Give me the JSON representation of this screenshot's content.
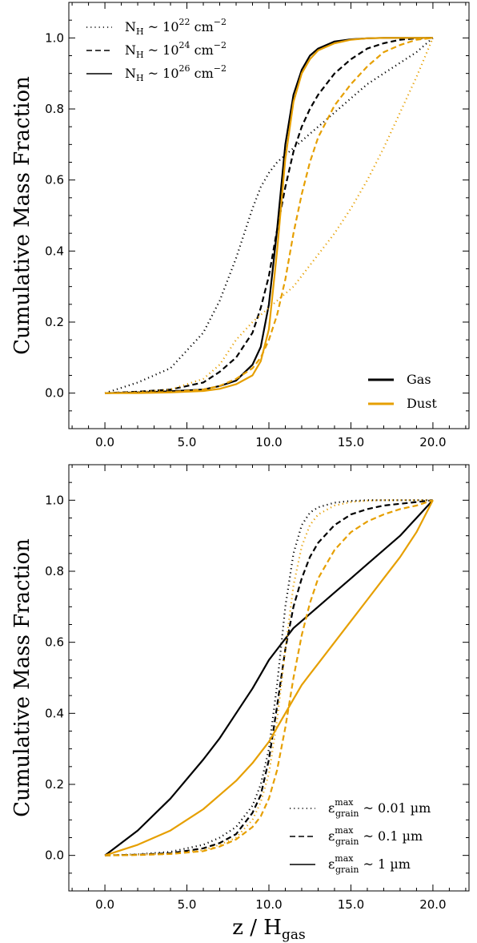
{
  "colors": {
    "gas": "#000000",
    "dust": "#e69f00"
  },
  "chart_data": [
    {
      "type": "line",
      "xlabel": "",
      "ylabel": "Cumulative Mass Fraction",
      "xlim": [
        -2.2,
        22.2
      ],
      "ylim": [
        -0.1,
        1.1
      ],
      "xticks": [
        "0.0",
        "5.0",
        "10.0",
        "15.0",
        "20.0"
      ],
      "yticks": [
        "0.0",
        "0.2",
        "0.4",
        "0.6",
        "0.8",
        "1.0"
      ],
      "style_legend": {
        "placement": "top-left",
        "entries": [
          {
            "style": "dotted",
            "main": "N",
            "sub": "H",
            "mid": " ~ 10",
            "sup": "22",
            "tail": " cm",
            "sup2": "−2"
          },
          {
            "style": "dashed",
            "main": "N",
            "sub": "H",
            "mid": " ~ 10",
            "sup": "24",
            "tail": " cm",
            "sup2": "−2"
          },
          {
            "style": "solid",
            "main": "N",
            "sub": "H",
            "mid": " ~ 10",
            "sup": "26",
            "tail": " cm",
            "sup2": "−2"
          }
        ]
      },
      "color_legend": {
        "placement": "bottom-right",
        "entries": [
          {
            "label": "Gas",
            "color_key": "gas"
          },
          {
            "label": "Dust",
            "color_key": "dust"
          }
        ]
      },
      "x": [
        0,
        2,
        4,
        6,
        7,
        8,
        9,
        9.5,
        10,
        10.5,
        11,
        11.5,
        12,
        12.5,
        13,
        14,
        15,
        16,
        17,
        18,
        19,
        20
      ],
      "series": [
        {
          "color_key": "gas",
          "style": "dotted",
          "values": [
            0.0,
            0.03,
            0.07,
            0.17,
            0.26,
            0.38,
            0.52,
            0.58,
            0.62,
            0.65,
            0.67,
            0.69,
            0.71,
            0.73,
            0.75,
            0.79,
            0.83,
            0.87,
            0.9,
            0.93,
            0.96,
            1.0
          ]
        },
        {
          "color_key": "gas",
          "style": "dashed",
          "values": [
            0.0,
            0.004,
            0.01,
            0.03,
            0.06,
            0.1,
            0.17,
            0.24,
            0.33,
            0.46,
            0.58,
            0.68,
            0.75,
            0.8,
            0.84,
            0.9,
            0.94,
            0.97,
            0.985,
            0.995,
            0.999,
            1.0
          ]
        },
        {
          "color_key": "gas",
          "style": "solid",
          "values": [
            0.0,
            0.002,
            0.005,
            0.01,
            0.02,
            0.035,
            0.08,
            0.13,
            0.25,
            0.46,
            0.7,
            0.84,
            0.91,
            0.95,
            0.97,
            0.99,
            0.996,
            0.999,
            1.0,
            1.0,
            1.0,
            1.0
          ]
        },
        {
          "color_key": "dust",
          "style": "dotted",
          "values": [
            0.0,
            0.003,
            0.01,
            0.04,
            0.08,
            0.15,
            0.2,
            0.22,
            0.24,
            0.26,
            0.28,
            0.3,
            0.33,
            0.36,
            0.39,
            0.45,
            0.52,
            0.6,
            0.69,
            0.79,
            0.89,
            1.0
          ]
        },
        {
          "color_key": "dust",
          "style": "dashed",
          "values": [
            0.0,
            0.001,
            0.003,
            0.01,
            0.02,
            0.04,
            0.07,
            0.1,
            0.15,
            0.22,
            0.32,
            0.45,
            0.56,
            0.65,
            0.72,
            0.81,
            0.87,
            0.92,
            0.96,
            0.98,
            0.995,
            1.0
          ]
        },
        {
          "color_key": "dust",
          "style": "solid",
          "values": [
            0.0,
            0.0,
            0.002,
            0.006,
            0.012,
            0.025,
            0.05,
            0.09,
            0.18,
            0.4,
            0.66,
            0.82,
            0.9,
            0.94,
            0.965,
            0.985,
            0.995,
            0.999,
            1.0,
            1.0,
            1.0,
            1.0
          ]
        }
      ]
    },
    {
      "type": "line",
      "xlabel": "z / H",
      "xlabel_sub": "gas",
      "ylabel": "Cumulative Mass Fraction",
      "xlim": [
        -2.2,
        22.2
      ],
      "ylim": [
        -0.1,
        1.1
      ],
      "xticks": [
        "0.0",
        "5.0",
        "10.0",
        "15.0",
        "20.0"
      ],
      "yticks": [
        "0.0",
        "0.2",
        "0.4",
        "0.6",
        "0.8",
        "1.0"
      ],
      "style_legend": {
        "placement": "bottom-right",
        "entries": [
          {
            "style": "dotted",
            "main": "ε",
            "sup": "max",
            "sub": "grain",
            "tail": " ~ 0.01 µm"
          },
          {
            "style": "dashed",
            "main": "ε",
            "sup": "max",
            "sub": "grain",
            "tail": " ~ 0.1 µm"
          },
          {
            "style": "solid",
            "main": "ε",
            "sup": "max",
            "sub": "grain",
            "tail": " ~ 1 µm"
          }
        ]
      },
      "x": [
        0,
        2,
        4,
        6,
        7,
        8,
        9,
        9.5,
        10,
        10.5,
        11,
        11.5,
        12,
        12.5,
        13,
        14,
        15,
        16,
        17,
        18,
        19,
        20
      ],
      "series": [
        {
          "color_key": "gas",
          "style": "dotted",
          "values": [
            0.0,
            0.003,
            0.01,
            0.03,
            0.05,
            0.08,
            0.14,
            0.2,
            0.3,
            0.48,
            0.7,
            0.85,
            0.93,
            0.965,
            0.98,
            0.993,
            0.998,
            1.0,
            1.0,
            1.0,
            1.0,
            1.0
          ]
        },
        {
          "color_key": "gas",
          "style": "dashed",
          "values": [
            0.0,
            0.002,
            0.006,
            0.02,
            0.035,
            0.06,
            0.12,
            0.17,
            0.27,
            0.42,
            0.58,
            0.7,
            0.78,
            0.84,
            0.88,
            0.93,
            0.96,
            0.975,
            0.985,
            0.99,
            0.995,
            1.0
          ]
        },
        {
          "color_key": "gas",
          "style": "solid",
          "values": [
            0.0,
            0.07,
            0.16,
            0.27,
            0.33,
            0.4,
            0.47,
            0.51,
            0.55,
            0.58,
            0.61,
            0.64,
            0.66,
            0.68,
            0.7,
            0.74,
            0.78,
            0.82,
            0.86,
            0.9,
            0.95,
            1.0
          ]
        },
        {
          "color_key": "dust",
          "style": "dotted",
          "values": [
            0.0,
            0.002,
            0.005,
            0.015,
            0.03,
            0.05,
            0.1,
            0.15,
            0.23,
            0.38,
            0.58,
            0.76,
            0.87,
            0.93,
            0.96,
            0.985,
            0.995,
            0.999,
            1.0,
            1.0,
            1.0,
            1.0
          ]
        },
        {
          "color_key": "dust",
          "style": "dashed",
          "values": [
            0.0,
            0.001,
            0.004,
            0.012,
            0.025,
            0.045,
            0.08,
            0.11,
            0.16,
            0.24,
            0.36,
            0.5,
            0.62,
            0.71,
            0.78,
            0.86,
            0.91,
            0.94,
            0.96,
            0.975,
            0.985,
            1.0
          ]
        },
        {
          "color_key": "dust",
          "style": "solid",
          "values": [
            0.0,
            0.03,
            0.07,
            0.13,
            0.17,
            0.21,
            0.26,
            0.29,
            0.32,
            0.36,
            0.4,
            0.44,
            0.48,
            0.51,
            0.54,
            0.6,
            0.66,
            0.72,
            0.78,
            0.84,
            0.91,
            1.0
          ]
        }
      ]
    }
  ]
}
